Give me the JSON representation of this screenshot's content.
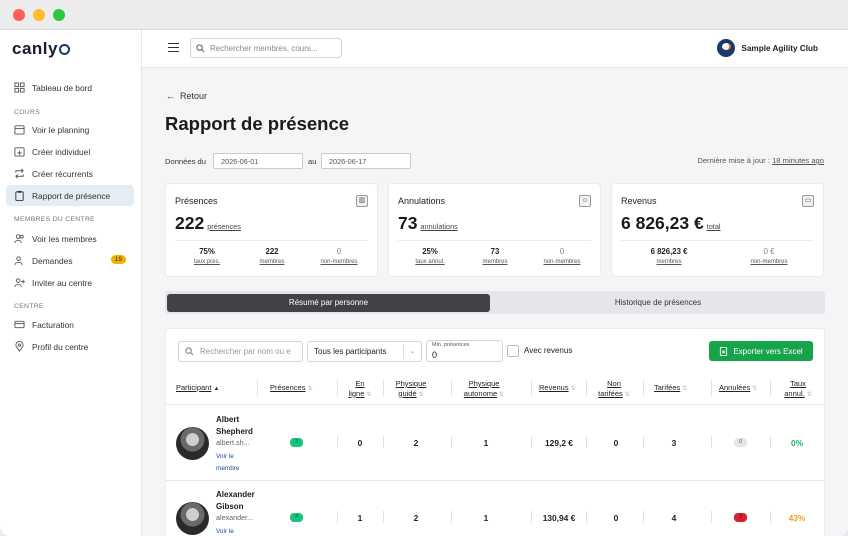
{
  "app": {
    "name": "canlyo",
    "club": "Sample Agility Club"
  },
  "search": {
    "placeholder": "Rechercher membres, cours..."
  },
  "sidebar": {
    "dashboard": "Tableau de bord",
    "sections": {
      "cours": "COURS",
      "membres": "MEMBRES DU CENTRE",
      "centre": "CENTRE"
    },
    "items": [
      {
        "label": "Voir le planning",
        "icon": "calendar-icon"
      },
      {
        "label": "Créer individuel",
        "icon": "calendar-plus-icon"
      },
      {
        "label": "Créer récurrents",
        "icon": "repeat-icon"
      },
      {
        "label": "Rapport de présence",
        "icon": "clipboard-icon"
      },
      {
        "label": "Voir les membres",
        "icon": "users-icon"
      },
      {
        "label": "Demandes",
        "icon": "user-plus-icon",
        "badge": "19"
      },
      {
        "label": "Inviter au centre",
        "icon": "user-add-icon"
      },
      {
        "label": "Facturation",
        "icon": "credit-card-icon"
      },
      {
        "label": "Profil du centre",
        "icon": "location-icon"
      }
    ]
  },
  "page": {
    "back": "Retour",
    "title": "Rapport de présence",
    "from_label": "Données du",
    "from": "2026-06-01",
    "to_label": "au",
    "to": "2026-06-17",
    "updated_label": "Dernière mise à jour :",
    "updated_value": "18 minutes ago"
  },
  "cards": [
    {
      "title": "Présences",
      "value": "222",
      "unit": "présences",
      "stats": [
        {
          "v": "75%",
          "l": "taux prés."
        },
        {
          "v": "222",
          "l": "membres"
        },
        {
          "v": "0",
          "l": "non-membres"
        }
      ]
    },
    {
      "title": "Annulations",
      "value": "73",
      "unit": "annulations",
      "stats": [
        {
          "v": "25%",
          "l": "taux annul."
        },
        {
          "v": "73",
          "l": "membres"
        },
        {
          "v": "0",
          "l": "non-membres"
        }
      ]
    },
    {
      "title": "Revenus",
      "value": "6 826,23 €",
      "unit": "total",
      "stats": [
        {
          "v": "6 826,23 €",
          "l": "membres"
        },
        {
          "v": "0 €",
          "l": "non-membres"
        }
      ]
    }
  ],
  "tabs": [
    "Résumé par personne",
    "Historique de présences"
  ],
  "filters": {
    "search_placeholder": "Rechercher par nom ou e",
    "participants": "Tous les participants",
    "min_label": "Min. présences",
    "min_value": "0",
    "revenue": "Avec revenus",
    "export": "Exporter vers Excel"
  },
  "columns": [
    "Participant",
    "Présences",
    "En ligne",
    "Physique guidé",
    "Physique autonome",
    "Revenus",
    "Non tarifées",
    "Tarifées",
    "Annulées",
    "Taux annul."
  ],
  "rows": [
    {
      "name": "Albert Shepherd",
      "email": "albert.sh...",
      "link": "Voir le membre",
      "presences": "3",
      "online": "0",
      "guided": "2",
      "autonomous": "1",
      "revenue": "129,2 €",
      "unbilled": "0",
      "billed": "3",
      "cancelled": "0",
      "rate": "0%",
      "rate_color": "#16b364"
    },
    {
      "name": "Alexander Gibson",
      "email": "alexander...",
      "link": "Voir le membre",
      "presences": "4",
      "online": "1",
      "guided": "2",
      "autonomous": "1",
      "revenue": "130,94 €",
      "unbilled": "0",
      "billed": "4",
      "cancelled": "3",
      "rate": "43%",
      "rate_color": "#e8a317"
    }
  ]
}
